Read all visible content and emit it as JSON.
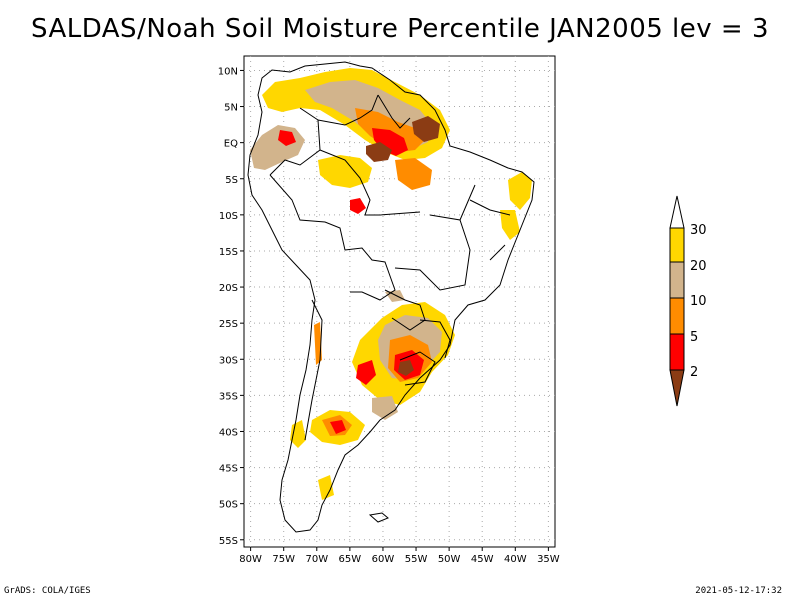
{
  "title": "SALDAS/Noah Soil Moisture Percentile JAN2005 lev = 3",
  "footer": {
    "left": "GrADS: COLA/IGES",
    "right": "2021-05-12-17:32"
  },
  "map": {
    "lat_labels": [
      "10N",
      "5N",
      "EQ",
      "5S",
      "10S",
      "15S",
      "20S",
      "25S",
      "30S",
      "35S",
      "40S",
      "45S",
      "50S",
      "55S"
    ],
    "lon_labels": [
      "80W",
      "75W",
      "70W",
      "65W",
      "60W",
      "55W",
      "50W",
      "45W",
      "40W",
      "35W"
    ],
    "lat_values": [
      10,
      5,
      0,
      -5,
      -10,
      -15,
      -20,
      -25,
      -30,
      -35,
      -40,
      -45,
      -50,
      -55
    ],
    "lon_values": [
      -80,
      -75,
      -70,
      -65,
      -60,
      -55,
      -50,
      -45,
      -40,
      -35
    ],
    "lat_range": [
      -56,
      12
    ],
    "lon_range": [
      -81,
      -34
    ]
  },
  "legend": {
    "labels": [
      "2",
      "5",
      "10",
      "20",
      "30"
    ],
    "colors": [
      "#8b3c14",
      "#ff0000",
      "#ff8c00",
      "#d2b48c",
      "#ffd700",
      "#ffffff"
    ]
  },
  "palette": {
    "p2": "#8b3c14",
    "p5": "#ff0000",
    "p10": "#ff8c00",
    "p20": "#d2b48c",
    "p30": "#ffd700"
  }
}
